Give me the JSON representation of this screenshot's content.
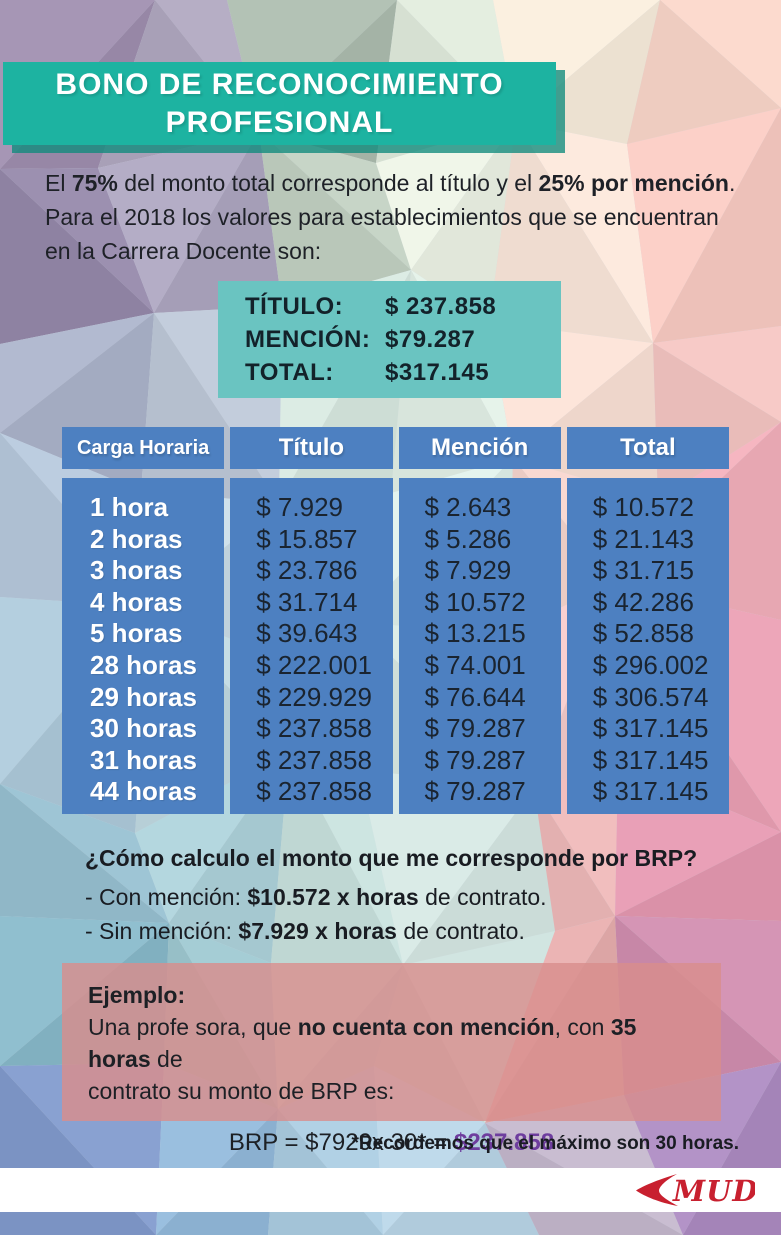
{
  "colors": {
    "banner_teal": "#1db3a1",
    "summary_teal": "#6ac4c1",
    "table_blue": "#4d80c1",
    "example_pink": "#d88e8c",
    "result_purple": "#6e3d9e",
    "logo_red": "#c8202f"
  },
  "banner": {
    "line1": "BONO DE RECONOCIMIENTO",
    "line2": "PROFESIONAL"
  },
  "intro": {
    "lines": [
      [
        {
          "t": "El "
        },
        {
          "t": "75%",
          "b": true
        },
        {
          "t": " del monto total corresponde al título y el "
        },
        {
          "t": "25% por mención",
          "b": true
        },
        {
          "t": "."
        }
      ],
      [
        {
          "t": "Para el 2018 los valores para establecimientos que se encuentran"
        }
      ],
      [
        {
          "t": "en la Carrera Docente son:"
        }
      ]
    ]
  },
  "summary": {
    "rows": [
      {
        "label": "TÍTULO:",
        "value": "$ 237.858"
      },
      {
        "label": "MENCIÓN:",
        "value": "$79.287"
      },
      {
        "label": "TOTAL:",
        "value": "$317.145"
      }
    ]
  },
  "table": {
    "headers": [
      "Carga Horaria",
      "Título",
      "Mención",
      "Total"
    ],
    "rows": [
      {
        "hours": "1 hora",
        "titulo": "$ 7.929",
        "mencion": "$ 2.643",
        "total": "$ 10.572"
      },
      {
        "hours": "2 horas",
        "titulo": "$ 15.857",
        "mencion": "$ 5.286",
        "total": "$ 21.143"
      },
      {
        "hours": "3 horas",
        "titulo": "$ 23.786",
        "mencion": "$ 7.929",
        "total": "$ 31.715"
      },
      {
        "hours": "4 horas",
        "titulo": "$ 31.714",
        "mencion": "$ 10.572",
        "total": "$ 42.286"
      },
      {
        "hours": "5 horas",
        "titulo": "$ 39.643",
        "mencion": "$ 13.215",
        "total": "$ 52.858"
      },
      {
        "hours": "28 horas",
        "titulo": "$ 222.001",
        "mencion": "$ 74.001",
        "total": "$ 296.002"
      },
      {
        "hours": "29 horas",
        "titulo": "$ 229.929",
        "mencion": "$ 76.644",
        "total": "$ 306.574"
      },
      {
        "hours": "30 horas",
        "titulo": "$ 237.858",
        "mencion": "$ 79.287",
        "total": "$ 317.145"
      },
      {
        "hours": "31 horas",
        "titulo": "$ 237.858",
        "mencion": "$ 79.287",
        "total": "$ 317.145"
      },
      {
        "hours": "44 horas",
        "titulo": "$ 237.858",
        "mencion": "$ 79.287",
        "total": "$ 317.145"
      }
    ]
  },
  "calc": {
    "question": "¿Cómo calculo el monto  que me corresponde por BRP?",
    "lines": [
      [
        {
          "t": "- Con mención: "
        },
        {
          "t": "$10.572 x horas",
          "b": true
        },
        {
          "t": " de contrato."
        }
      ],
      [
        {
          "t": "- Sin mención: "
        },
        {
          "t": "$7.929 x horas",
          "b": true
        },
        {
          "t": " de contrato."
        }
      ]
    ]
  },
  "example": {
    "title": "Ejemplo:",
    "lines": [
      [
        {
          "t": "Una profe sora, que "
        },
        {
          "t": "no cuenta con mención",
          "b": true
        },
        {
          "t": ", con "
        },
        {
          "t": "35 horas",
          "b": true
        },
        {
          "t": " de"
        }
      ],
      [
        {
          "t": "contrato su monto de BRP es:"
        }
      ]
    ],
    "formula": [
      {
        "t": "BRP = $7929x 30* = "
      },
      {
        "t": "$237.858",
        "b": true,
        "purple": true
      }
    ]
  },
  "footnote": "*Recordemos que el máximo son 30 horas.",
  "logo": {
    "text": "MUD"
  }
}
